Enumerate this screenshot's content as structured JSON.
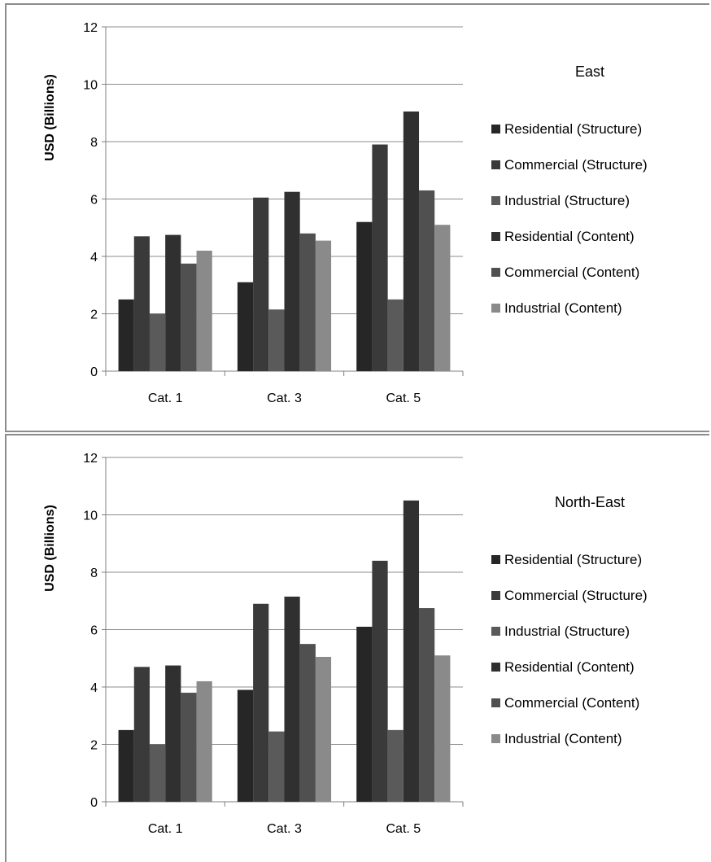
{
  "chart_data": [
    {
      "type": "bar",
      "title": "East",
      "ylabel": "USD (Billions)",
      "xlabel": "",
      "ylim": [
        0,
        12
      ],
      "yticks": [
        0,
        2,
        4,
        6,
        8,
        10,
        12
      ],
      "grid": true,
      "legend_position": "right",
      "categories": [
        "Cat. 1",
        "Cat. 3",
        "Cat. 5"
      ],
      "series": [
        {
          "name": "Residential (Structure)",
          "color": "#262626",
          "values": [
            2.5,
            3.1,
            5.2
          ]
        },
        {
          "name": "Commercial (Structure)",
          "color": "#3a3a3a",
          "values": [
            4.7,
            6.05,
            7.9
          ]
        },
        {
          "name": "Industrial (Structure)",
          "color": "#5a5a5a",
          "values": [
            2.0,
            2.15,
            2.5
          ]
        },
        {
          "name": "Residential (Content)",
          "color": "#303030",
          "values": [
            4.75,
            6.25,
            9.05
          ]
        },
        {
          "name": "Commercial (Content)",
          "color": "#505050",
          "values": [
            3.75,
            4.8,
            6.3
          ]
        },
        {
          "name": "Industrial (Content)",
          "color": "#8a8a8a",
          "values": [
            4.2,
            4.55,
            5.1
          ]
        }
      ]
    },
    {
      "type": "bar",
      "title": "North-East",
      "ylabel": "USD (Billions)",
      "xlabel": "",
      "ylim": [
        0,
        12
      ],
      "yticks": [
        0,
        2,
        4,
        6,
        8,
        10,
        12
      ],
      "grid": true,
      "legend_position": "right",
      "categories": [
        "Cat. 1",
        "Cat. 3",
        "Cat. 5"
      ],
      "series": [
        {
          "name": "Residential (Structure)",
          "color": "#262626",
          "values": [
            2.5,
            3.9,
            6.1
          ]
        },
        {
          "name": "Commercial (Structure)",
          "color": "#3a3a3a",
          "values": [
            4.7,
            6.9,
            8.4
          ]
        },
        {
          "name": "Industrial (Structure)",
          "color": "#5a5a5a",
          "values": [
            2.0,
            2.45,
            2.5
          ]
        },
        {
          "name": "Residential (Content)",
          "color": "#303030",
          "values": [
            4.75,
            7.15,
            10.5
          ]
        },
        {
          "name": "Commercial (Content)",
          "color": "#505050",
          "values": [
            3.8,
            5.5,
            6.75
          ]
        },
        {
          "name": "Industrial (Content)",
          "color": "#8a8a8a",
          "values": [
            4.2,
            5.05,
            5.1
          ]
        }
      ]
    }
  ]
}
